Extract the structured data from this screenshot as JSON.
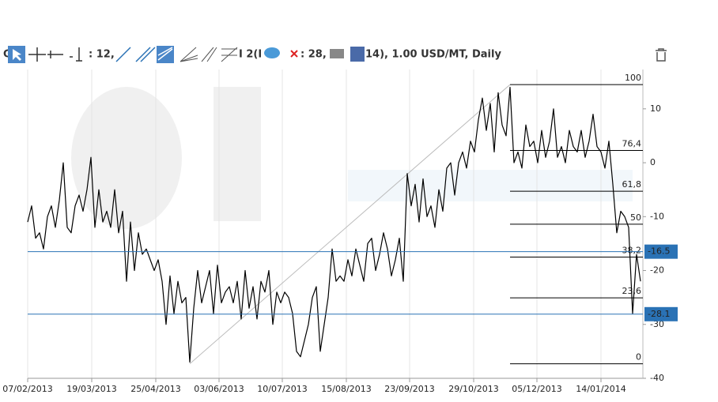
{
  "toolbar": {
    "fragments": [
      "G",
      ": 12,",
      "I 2(I",
      ": 28,",
      "14), 1.00 USD/MT, Daily"
    ]
  },
  "chart_data": {
    "type": "line",
    "series": [
      {
        "color": "#000000",
        "values": [
          -11,
          -8,
          -14,
          -13,
          -16,
          -10,
          -8,
          -12,
          -7,
          0,
          -12,
          -13,
          -8,
          -6,
          -9,
          -5,
          1,
          -12,
          -5,
          -11,
          -9,
          -12,
          -5,
          -13,
          -9,
          -22,
          -11,
          -20,
          -13,
          -17,
          -16,
          -18,
          -20,
          -18,
          -22,
          -30,
          -21,
          -28,
          -22,
          -26,
          -25,
          -37,
          -27,
          -20,
          -26,
          -23,
          -20,
          -28,
          -19,
          -26,
          -24,
          -23,
          -26,
          -22,
          -29,
          -20,
          -27,
          -23,
          -29,
          -22,
          -24,
          -20,
          -30,
          -24,
          -26,
          -24,
          -25,
          -28,
          -35,
          -36,
          -33,
          -30,
          -25,
          -23,
          -35,
          -30,
          -25,
          -16,
          -22,
          -21,
          -22,
          -18,
          -21,
          -16,
          -19,
          -22,
          -15,
          -14,
          -20,
          -17,
          -13,
          -16,
          -21,
          -18,
          -14,
          -22,
          -2,
          -8,
          -4,
          -11,
          -3,
          -10,
          -8,
          -12,
          -5,
          -9,
          -1,
          0,
          -6,
          0,
          2,
          -1,
          4,
          2,
          8,
          12,
          6,
          11,
          2,
          13,
          7,
          5,
          14,
          0,
          2,
          -1,
          7,
          3,
          4,
          0,
          6,
          1,
          4,
          10,
          1,
          3,
          0,
          6,
          3,
          2,
          6,
          1,
          4,
          9,
          3,
          2,
          -1,
          4,
          -4,
          -13,
          -9,
          -10,
          -12,
          -28,
          -17,
          -22
        ]
      }
    ],
    "xlim": [
      0,
      155.6
    ],
    "xticks": [
      {
        "value": 0,
        "label": "07/02/2013"
      },
      {
        "value": 16.2,
        "label": "19/03/2013"
      },
      {
        "value": 32.4,
        "label": "25/04/2013"
      },
      {
        "value": 48.4,
        "label": "03/06/2013"
      },
      {
        "value": 64.4,
        "label": "10/07/2013"
      },
      {
        "value": 80.6,
        "label": "15/08/2013"
      },
      {
        "value": 96.6,
        "label": "23/09/2013"
      },
      {
        "value": 112.8,
        "label": "29/10/2013"
      },
      {
        "value": 128.8,
        "label": "05/12/2013"
      },
      {
        "value": 145,
        "label": "14/01/2014"
      }
    ],
    "ylim": [
      -40,
      17.3
    ],
    "yticks": [
      10,
      0,
      -10,
      -20,
      -30,
      -40
    ],
    "grid": "x",
    "hlines": [
      -16.5,
      -28.1
    ],
    "hline_color": "#2a72b5",
    "fibonacci": {
      "low": -37.3,
      "high": 14.5,
      "start": 41,
      "end": 122,
      "levels": [
        100,
        {
          "value": 76.4,
          "label": "76,4"
        },
        {
          "value": 61.8,
          "label": "61,8"
        },
        50,
        {
          "value": 38.2,
          "label": "38,2"
        },
        {
          "value": 23.6,
          "label": "23,6"
        },
        0
      ]
    }
  }
}
